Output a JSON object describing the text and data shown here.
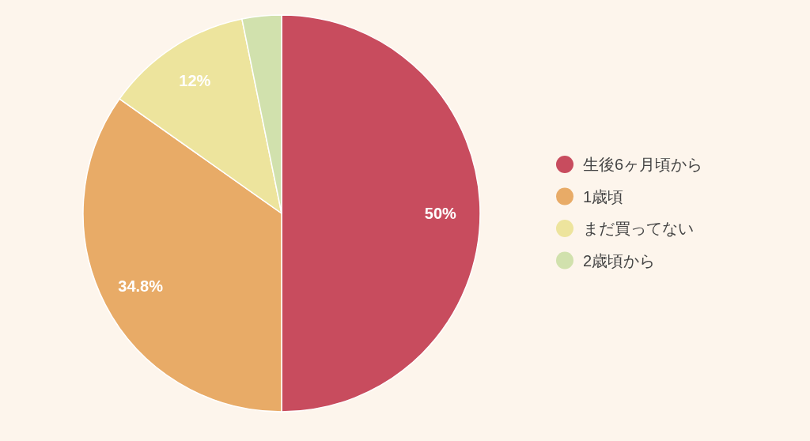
{
  "chart_data": {
    "type": "pie",
    "categories": [
      "生後6ヶ月頃から",
      "1歳頃",
      "まだ買ってない",
      "2歳頃から"
    ],
    "values": [
      50,
      34.8,
      12,
      3.2
    ],
    "value_labels": [
      "50%",
      "34.8%",
      "12%",
      null
    ],
    "colors": [
      "#c84c5e",
      "#e8ab67",
      "#ede49d",
      "#d1e1ad"
    ],
    "legend": "right"
  }
}
